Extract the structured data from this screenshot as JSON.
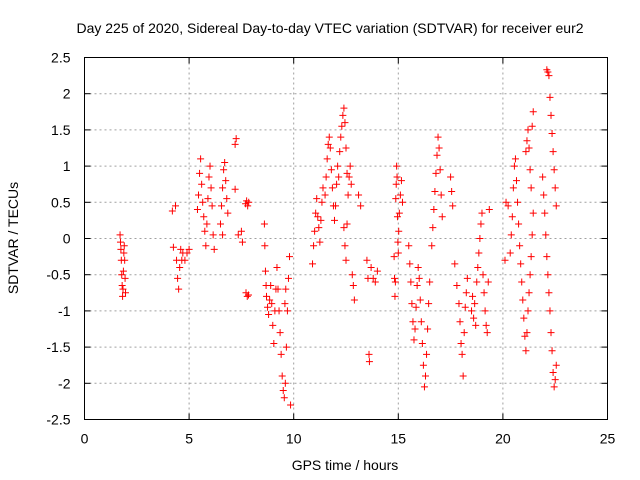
{
  "chart_data": {
    "type": "scatter",
    "title": "Day 225 of 2020, Sidereal Day-to-day VTEC variation (SDTVAR) for receiver eur2",
    "xlabel": "GPS time / hours",
    "ylabel": "SDTVAR / TECUs",
    "xlim": [
      0,
      25
    ],
    "ylim": [
      -2.5,
      2.5
    ],
    "xticks": [
      "0",
      "5",
      "10",
      "15",
      "20",
      "25"
    ],
    "yticks": [
      "2.5",
      "2",
      "1.5",
      "1",
      "0.5",
      "0",
      "-0.5",
      "-1",
      "-1.5",
      "-2",
      "-2.5"
    ],
    "grid": true,
    "marker": "+",
    "series_color": "#ff0000",
    "series": [
      {
        "name": "eur2",
        "points": [
          [
            1.7,
            0.05
          ],
          [
            1.72,
            -0.05
          ],
          [
            1.74,
            -0.15
          ],
          [
            1.76,
            -0.3
          ],
          [
            1.78,
            -0.5
          ],
          [
            1.8,
            -0.65
          ],
          [
            1.82,
            -0.8
          ],
          [
            1.84,
            -0.7
          ],
          [
            1.86,
            -0.45
          ],
          [
            1.88,
            -0.2
          ],
          [
            1.9,
            -0.1
          ],
          [
            1.92,
            -0.3
          ],
          [
            1.94,
            -0.55
          ],
          [
            1.96,
            -0.75
          ],
          [
            4.2,
            0.38
          ],
          [
            4.35,
            0.45
          ],
          [
            4.4,
            -0.3
          ],
          [
            4.45,
            -0.55
          ],
          [
            4.5,
            -0.7
          ],
          [
            4.55,
            -0.4
          ],
          [
            4.6,
            -0.15
          ],
          [
            4.65,
            -0.3
          ],
          [
            4.7,
            -0.2
          ],
          [
            4.8,
            -0.3
          ],
          [
            4.9,
            -0.2
          ],
          [
            5.0,
            -0.15
          ],
          [
            4.25,
            -0.12
          ],
          [
            5.4,
            0.4
          ],
          [
            5.45,
            0.6
          ],
          [
            5.5,
            0.9
          ],
          [
            5.55,
            1.1
          ],
          [
            5.6,
            0.75
          ],
          [
            5.65,
            0.5
          ],
          [
            5.7,
            0.3
          ],
          [
            5.75,
            0.1
          ],
          [
            5.8,
            -0.1
          ],
          [
            5.85,
            0.2
          ],
          [
            5.9,
            0.55
          ],
          [
            5.95,
            0.85
          ],
          [
            6.0,
            1.0
          ],
          [
            6.05,
            0.7
          ],
          [
            6.1,
            0.45
          ],
          [
            6.15,
            0.05
          ],
          [
            6.2,
            -0.15
          ],
          [
            6.5,
            0.2
          ],
          [
            6.55,
            0.45
          ],
          [
            6.6,
            0.7
          ],
          [
            6.65,
            0.95
          ],
          [
            6.7,
            1.05
          ],
          [
            6.75,
            0.8
          ],
          [
            6.8,
            0.55
          ],
          [
            6.85,
            0.35
          ],
          [
            6.6,
            0.05
          ],
          [
            7.2,
            1.3
          ],
          [
            7.25,
            1.38
          ],
          [
            7.2,
            0.68
          ],
          [
            7.35,
            0.05
          ],
          [
            7.5,
            0.1
          ],
          [
            7.55,
            -0.05
          ],
          [
            7.7,
            0.48
          ],
          [
            7.75,
            0.52
          ],
          [
            7.8,
            0.45
          ],
          [
            7.85,
            0.5
          ],
          [
            7.72,
            -0.75
          ],
          [
            7.78,
            -0.8
          ],
          [
            7.84,
            -0.78
          ],
          [
            8.6,
            0.2
          ],
          [
            8.62,
            -0.1
          ],
          [
            8.65,
            -0.45
          ],
          [
            8.68,
            -0.65
          ],
          [
            8.7,
            -0.8
          ],
          [
            8.75,
            -0.95
          ],
          [
            8.8,
            -1.05
          ],
          [
            8.85,
            -0.85
          ],
          [
            8.9,
            -0.65
          ],
          [
            8.95,
            -0.9
          ],
          [
            9.0,
            -1.2
          ],
          [
            9.05,
            -1.45
          ],
          [
            9.1,
            -1.0
          ],
          [
            9.15,
            -0.7
          ],
          [
            9.2,
            -0.4
          ],
          [
            9.25,
            -0.7
          ],
          [
            9.3,
            -1.0
          ],
          [
            9.35,
            -1.3
          ],
          [
            9.4,
            -1.6
          ],
          [
            9.45,
            -1.9
          ],
          [
            9.5,
            -2.1
          ],
          [
            9.55,
            -2.2
          ],
          [
            9.6,
            -2.0
          ],
          [
            9.65,
            -1.5
          ],
          [
            9.7,
            -1.0
          ],
          [
            9.75,
            -0.55
          ],
          [
            9.8,
            -0.25
          ],
          [
            9.85,
            -2.3
          ],
          [
            9.58,
            -0.9
          ],
          [
            9.62,
            -0.7
          ],
          [
            10.9,
            -0.35
          ],
          [
            10.95,
            -0.1
          ],
          [
            11.0,
            0.1
          ],
          [
            11.05,
            0.35
          ],
          [
            11.1,
            0.55
          ],
          [
            11.15,
            0.3
          ],
          [
            11.2,
            0.15
          ],
          [
            11.25,
            -0.05
          ],
          [
            11.3,
            0.25
          ],
          [
            11.35,
            0.5
          ],
          [
            11.4,
            0.7
          ],
          [
            11.5,
            0.6
          ],
          [
            11.55,
            0.85
          ],
          [
            11.6,
            1.1
          ],
          [
            11.65,
            1.3
          ],
          [
            11.7,
            1.4
          ],
          [
            11.75,
            1.25
          ],
          [
            11.8,
            0.95
          ],
          [
            11.85,
            0.7
          ],
          [
            11.9,
            0.45
          ],
          [
            11.95,
            0.25
          ],
          [
            12.0,
            0.45
          ],
          [
            12.05,
            0.75
          ],
          [
            12.1,
            1.0
          ],
          [
            12.15,
            0.85
          ],
          [
            12.2,
            1.2
          ],
          [
            12.25,
            1.4
          ],
          [
            12.3,
            1.55
          ],
          [
            12.35,
            1.7
          ],
          [
            12.4,
            1.8
          ],
          [
            12.45,
            1.6
          ],
          [
            12.5,
            1.25
          ],
          [
            12.55,
            0.9
          ],
          [
            12.4,
            0.15
          ],
          [
            12.45,
            -0.1
          ],
          [
            12.5,
            -0.3
          ],
          [
            12.55,
            0.2
          ],
          [
            12.6,
            0.6
          ],
          [
            12.65,
            0.85
          ],
          [
            12.7,
            1.0
          ],
          [
            12.75,
            0.75
          ],
          [
            12.8,
            -0.5
          ],
          [
            12.85,
            -0.65
          ],
          [
            12.9,
            -0.85
          ],
          [
            13.1,
            0.6
          ],
          [
            13.2,
            0.45
          ],
          [
            13.5,
            -0.3
          ],
          [
            13.55,
            -0.55
          ],
          [
            13.6,
            -1.6
          ],
          [
            13.62,
            -1.7
          ],
          [
            13.7,
            -0.4
          ],
          [
            13.8,
            -0.55
          ],
          [
            13.9,
            -0.6
          ],
          [
            14.0,
            -0.45
          ],
          [
            14.8,
            -0.25
          ],
          [
            14.82,
            -0.55
          ],
          [
            14.84,
            -0.8
          ],
          [
            14.86,
            -0.6
          ],
          [
            14.88,
            0.55
          ],
          [
            14.9,
            0.75
          ],
          [
            14.92,
            1.0
          ],
          [
            14.94,
            0.85
          ],
          [
            14.96,
            0.3
          ],
          [
            14.98,
            -0.05
          ],
          [
            15.0,
            -0.2
          ],
          [
            15.02,
            0.1
          ],
          [
            15.05,
            0.35
          ],
          [
            15.1,
            0.6
          ],
          [
            15.15,
            0.8
          ],
          [
            15.2,
            0.5
          ],
          [
            15.5,
            -0.1
          ],
          [
            15.55,
            -0.35
          ],
          [
            15.6,
            -0.6
          ],
          [
            15.65,
            -0.9
          ],
          [
            15.7,
            -1.15
          ],
          [
            15.75,
            -1.4
          ],
          [
            15.8,
            -1.25
          ],
          [
            15.85,
            -0.95
          ],
          [
            15.9,
            -0.65
          ],
          [
            15.95,
            -0.4
          ],
          [
            16.0,
            -0.55
          ],
          [
            16.05,
            -0.85
          ],
          [
            16.1,
            -1.15
          ],
          [
            16.15,
            -1.45
          ],
          [
            16.2,
            -1.75
          ],
          [
            16.25,
            -2.05
          ],
          [
            16.3,
            -1.9
          ],
          [
            16.35,
            -1.6
          ],
          [
            16.4,
            -1.25
          ],
          [
            16.45,
            -0.9
          ],
          [
            16.5,
            -0.6
          ],
          [
            16.6,
            -0.1
          ],
          [
            16.65,
            0.15
          ],
          [
            16.7,
            0.4
          ],
          [
            16.75,
            0.65
          ],
          [
            16.8,
            0.9
          ],
          [
            16.85,
            1.15
          ],
          [
            16.9,
            1.4
          ],
          [
            16.95,
            1.25
          ],
          [
            17.0,
            0.95
          ],
          [
            17.05,
            0.6
          ],
          [
            17.1,
            0.3
          ],
          [
            17.5,
            0.85
          ],
          [
            17.55,
            0.65
          ],
          [
            17.6,
            0.45
          ],
          [
            17.7,
            -0.35
          ],
          [
            17.8,
            -0.65
          ],
          [
            17.9,
            -0.9
          ],
          [
            17.95,
            -1.15
          ],
          [
            18.0,
            -1.45
          ],
          [
            18.05,
            -1.6
          ],
          [
            18.1,
            -1.9
          ],
          [
            18.15,
            -1.3
          ],
          [
            18.2,
            -0.95
          ],
          [
            18.25,
            -0.75
          ],
          [
            18.3,
            -0.55
          ],
          [
            18.5,
            -1.0
          ],
          [
            18.55,
            -0.8
          ],
          [
            18.6,
            -1.1
          ],
          [
            18.65,
            -0.9
          ],
          [
            18.7,
            -1.2
          ],
          [
            18.75,
            -0.6
          ],
          [
            18.8,
            -0.4
          ],
          [
            18.85,
            -0.2
          ],
          [
            18.9,
            0.0
          ],
          [
            18.95,
            0.2
          ],
          [
            19.0,
            0.35
          ],
          [
            19.05,
            -0.5
          ],
          [
            19.1,
            -0.75
          ],
          [
            19.15,
            -1.0
          ],
          [
            19.2,
            -1.2
          ],
          [
            19.25,
            -1.3
          ],
          [
            19.3,
            -0.6
          ],
          [
            19.35,
            0.4
          ],
          [
            20.1,
            -0.3
          ],
          [
            20.15,
            0.5
          ],
          [
            20.25,
            0.45
          ],
          [
            20.35,
            -0.2
          ],
          [
            20.4,
            0.05
          ],
          [
            20.45,
            0.3
          ],
          [
            20.5,
            0.7
          ],
          [
            20.55,
            1.0
          ],
          [
            20.6,
            1.1
          ],
          [
            20.65,
            0.8
          ],
          [
            20.7,
            0.5
          ],
          [
            20.75,
            0.2
          ],
          [
            20.8,
            -0.1
          ],
          [
            20.85,
            -0.35
          ],
          [
            20.9,
            -0.6
          ],
          [
            20.95,
            -0.85
          ],
          [
            21.0,
            -1.1
          ],
          [
            21.05,
            -1.35
          ],
          [
            21.1,
            -1.55
          ],
          [
            21.15,
            -1.3
          ],
          [
            21.2,
            -1.0
          ],
          [
            21.25,
            -0.75
          ],
          [
            21.3,
            -0.5
          ],
          [
            21.35,
            -0.25
          ],
          [
            21.4,
            0.05
          ],
          [
            21.45,
            0.35
          ],
          [
            21.1,
            1.2
          ],
          [
            21.15,
            1.35
          ],
          [
            21.2,
            1.5
          ],
          [
            21.25,
            1.25
          ],
          [
            21.3,
            0.95
          ],
          [
            21.35,
            0.7
          ],
          [
            21.4,
            1.55
          ],
          [
            21.45,
            1.75
          ],
          [
            21.9,
            0.85
          ],
          [
            21.95,
            0.6
          ],
          [
            22.0,
            0.35
          ],
          [
            22.05,
            0.05
          ],
          [
            22.1,
            -0.25
          ],
          [
            22.15,
            -0.5
          ],
          [
            22.2,
            -0.75
          ],
          [
            22.25,
            -1.0
          ],
          [
            22.3,
            -1.3
          ],
          [
            22.35,
            -1.55
          ],
          [
            22.4,
            -1.85
          ],
          [
            22.45,
            -2.05
          ],
          [
            22.5,
            -1.95
          ],
          [
            22.55,
            -1.75
          ],
          [
            22.1,
            2.33
          ],
          [
            22.15,
            2.3
          ],
          [
            22.2,
            2.25
          ],
          [
            22.25,
            1.95
          ],
          [
            22.3,
            1.7
          ],
          [
            22.35,
            1.45
          ],
          [
            22.4,
            1.2
          ],
          [
            22.45,
            0.95
          ],
          [
            22.5,
            0.7
          ],
          [
            22.55,
            0.45
          ]
        ]
      }
    ]
  }
}
